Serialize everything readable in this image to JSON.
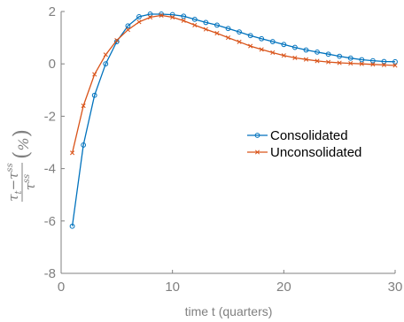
{
  "chart_data": {
    "type": "line",
    "xlabel": "time t (quarters)",
    "ylabel": {
      "num_left": "τ",
      "num_left_sub": "t",
      "num_minus": "−",
      "num_right": "τ",
      "num_right_sup": "ss",
      "den": "τ",
      "den_sup": "ss",
      "lparen": "(",
      "unit": "%",
      "rparen": ")"
    },
    "xlim": [
      0,
      30
    ],
    "ylim": [
      -8,
      2
    ],
    "xticks": [
      0,
      10,
      20,
      30
    ],
    "xtick_labels": [
      "0",
      "10",
      "20",
      "30"
    ],
    "yticks": [
      -8,
      -6,
      -4,
      -2,
      0,
      2
    ],
    "ytick_labels": [
      "-8",
      "-6",
      "-4",
      "-2",
      "0",
      "2"
    ],
    "grid": false,
    "legend_position": "right",
    "x": [
      1,
      2,
      3,
      4,
      5,
      6,
      7,
      8,
      9,
      10,
      11,
      12,
      13,
      14,
      15,
      16,
      17,
      18,
      19,
      20,
      21,
      22,
      23,
      24,
      25,
      26,
      27,
      28,
      29,
      30
    ],
    "series": [
      {
        "name": "Consolidated",
        "color": "#0072BD",
        "marker": "circle",
        "values": [
          -6.2,
          -3.1,
          -1.2,
          0.0,
          0.85,
          1.45,
          1.8,
          1.9,
          1.9,
          1.88,
          1.82,
          1.7,
          1.58,
          1.48,
          1.35,
          1.22,
          1.08,
          0.96,
          0.85,
          0.74,
          0.63,
          0.53,
          0.45,
          0.37,
          0.29,
          0.22,
          0.16,
          0.12,
          0.09,
          0.08
        ]
      },
      {
        "name": "Unconsolidated",
        "color": "#D95319",
        "marker": "x",
        "values": [
          -3.4,
          -1.6,
          -0.4,
          0.35,
          0.9,
          1.3,
          1.6,
          1.78,
          1.85,
          1.78,
          1.65,
          1.48,
          1.32,
          1.17,
          1.0,
          0.84,
          0.68,
          0.55,
          0.43,
          0.32,
          0.23,
          0.17,
          0.11,
          0.07,
          0.04,
          0.02,
          0.0,
          -0.02,
          -0.04,
          -0.06
        ]
      }
    ]
  }
}
